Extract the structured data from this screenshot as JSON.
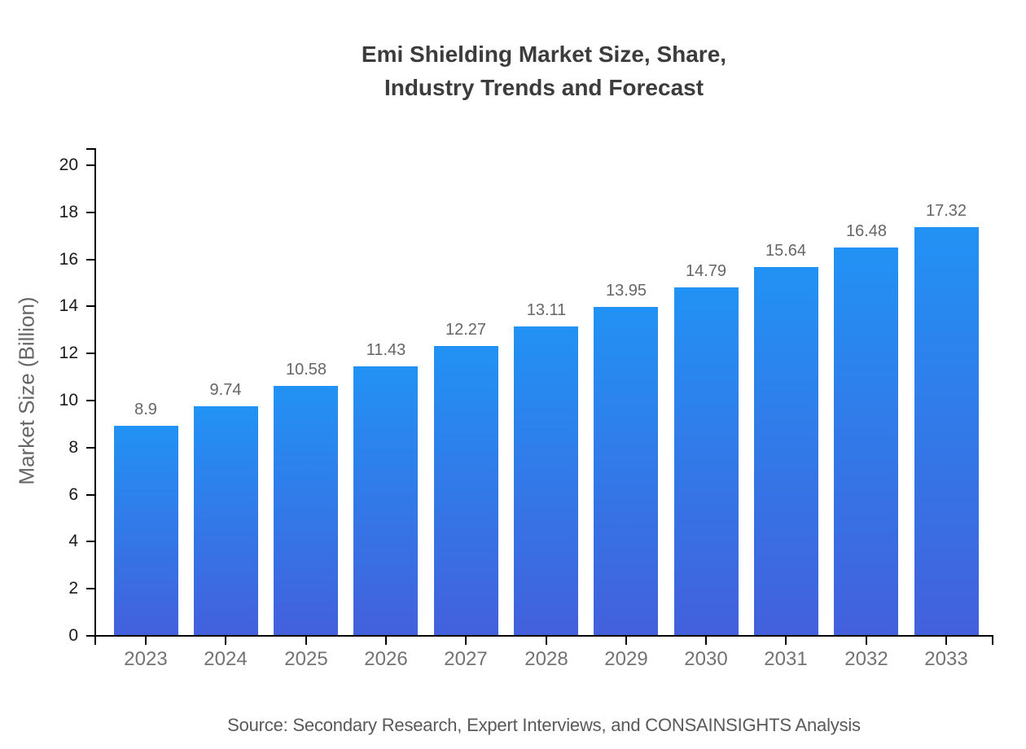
{
  "title": {
    "lines": [
      "Emi Shielding Market Size, Share,",
      "Industry Trends and Forecast"
    ]
  },
  "source_note": "Source: Secondary Research, Expert Interviews, and CONSAINSIGHTS Analysis",
  "chart_data": {
    "type": "bar",
    "title": "Emi Shielding Market Size, Share, Industry Trends and Forecast",
    "categories": [
      "2023",
      "2024",
      "2025",
      "2026",
      "2027",
      "2028",
      "2029",
      "2030",
      "2031",
      "2032",
      "2033"
    ],
    "values": [
      8.9,
      9.74,
      10.58,
      11.43,
      12.27,
      13.11,
      13.95,
      14.79,
      15.64,
      16.48,
      17.32
    ],
    "xlabel": "",
    "ylabel": "Market Size (Billion)",
    "ylim": [
      0,
      20
    ],
    "ytick_step": 2,
    "grid": false,
    "legend": "none",
    "value_labels_shown": true,
    "colors": {
      "bar_gradient_top": "#2292f5",
      "bar_gradient_bottom": "#4360dc",
      "axis": "#000000",
      "y_tick_label": "#1a1a1a",
      "x_tick_label": "#737373",
      "value_label": "#666666",
      "title": "#3c3c3c",
      "ylabel": "#666666",
      "source": "#595959"
    }
  }
}
